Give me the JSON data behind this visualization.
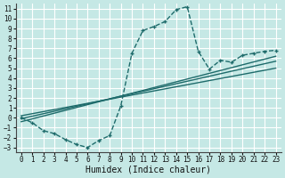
{
  "xlabel": "Humidex (Indice chaleur)",
  "bg_color": "#c5e8e5",
  "grid_color": "#ffffff",
  "line_color": "#1e6b6b",
  "xlim": [
    -0.5,
    23.5
  ],
  "ylim": [
    -3.5,
    11.5
  ],
  "xticks": [
    0,
    1,
    2,
    3,
    4,
    5,
    6,
    7,
    8,
    9,
    10,
    11,
    12,
    13,
    14,
    15,
    16,
    17,
    18,
    19,
    20,
    21,
    22,
    23
  ],
  "yticks": [
    -3,
    -2,
    -1,
    0,
    1,
    2,
    3,
    4,
    5,
    6,
    7,
    8,
    9,
    10,
    11
  ],
  "main_x": [
    0,
    1,
    2,
    3,
    4,
    5,
    6,
    7,
    8,
    9,
    10,
    11,
    12,
    13,
    14,
    15,
    16,
    17,
    18,
    19,
    20,
    21,
    22,
    23
  ],
  "main_y": [
    0.0,
    -0.5,
    -1.3,
    -1.6,
    -2.2,
    -2.7,
    -3.0,
    -2.3,
    -1.8,
    1.2,
    6.5,
    8.8,
    9.2,
    9.7,
    10.9,
    11.2,
    6.7,
    4.9,
    5.8,
    5.6,
    6.3,
    6.5,
    6.7,
    6.8
  ],
  "trend1_x": [
    0,
    23
  ],
  "trend1_y": [
    -0.4,
    6.2
  ],
  "trend2_x": [
    0,
    23
  ],
  "trend2_y": [
    -0.1,
    5.7
  ],
  "trend3_x": [
    0,
    23
  ],
  "trend3_y": [
    0.2,
    5.0
  ]
}
